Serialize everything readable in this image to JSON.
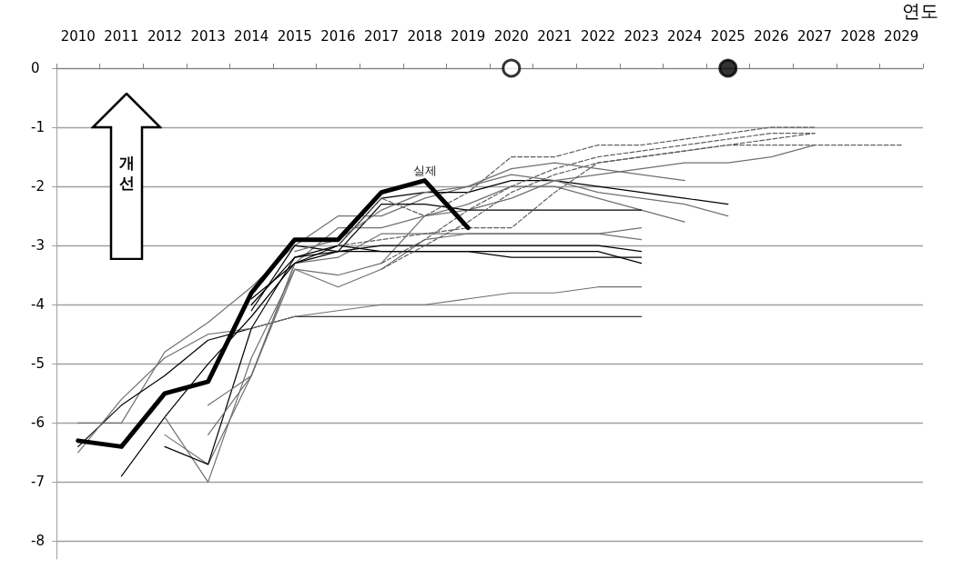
{
  "chart_data": {
    "type": "line",
    "xlabel": "연도",
    "annotations": [
      "개선"
    ],
    "grid": "y",
    "marker": "none",
    "line_style": "solid",
    "ylim": [
      -8.3,
      0
    ],
    "yticks": [
      -8,
      -7,
      -6,
      -5,
      -4,
      -3,
      -2,
      -1,
      0
    ],
    "categories": [
      "2010",
      "2011",
      "2012",
      "2013",
      "2014",
      "2015",
      "2016",
      "2017",
      "2018",
      "2019",
      "2020",
      "2021",
      "2022",
      "2023",
      "2024",
      "2025",
      "2026",
      "2027",
      "2028",
      "2029"
    ],
    "series": [
      {
        "color": "#707070",
        "values": [
          -6.0,
          -6.0,
          -4.8,
          -4.3,
          -3.7,
          -3.0,
          -2.5,
          -2.5,
          -2.2,
          -2.0,
          -1.7,
          -1.6,
          -1.7,
          -1.8,
          -1.9,
          null,
          null,
          null,
          null,
          null
        ]
      },
      {
        "color": "#000000",
        "values": [
          -6.4,
          -5.7,
          -5.2,
          -4.6,
          -4.4,
          -4.2,
          -4.2,
          -4.2,
          -4.2,
          -4.2,
          -4.2,
          -4.2,
          -4.2,
          -4.2,
          null,
          null,
          null,
          null,
          null,
          null
        ]
      },
      {
        "color": "#707070",
        "values": [
          -6.5,
          -5.6,
          -4.9,
          -4.5,
          -4.4,
          -4.2,
          -4.1,
          -4.0,
          -4.0,
          -3.9,
          -3.8,
          -3.8,
          -3.7,
          -3.7,
          null,
          null,
          null,
          null,
          null,
          null
        ]
      },
      {
        "color": "#000000",
        "values": [
          null,
          -6.9,
          -5.9,
          -5.0,
          -4.2,
          -3.3,
          -3.0,
          -2.2,
          -2.1,
          -2.1,
          -1.9,
          -1.9,
          -2.0,
          -2.1,
          -2.2,
          -2.3,
          null,
          null,
          null,
          null
        ]
      },
      {
        "color": "#707070",
        "values": [
          null,
          null,
          -6.2,
          -6.7,
          -5.2,
          -3.3,
          -2.7,
          -2.7,
          -2.5,
          -2.4,
          -2.2,
          -1.9,
          -2.1,
          -2.2,
          -2.3,
          -2.5,
          null,
          null,
          null,
          null
        ]
      },
      {
        "color": "#707070",
        "values": [
          null,
          null,
          -5.9,
          -7.0,
          -4.9,
          -3.4,
          -3.5,
          -3.3,
          -2.5,
          -2.3,
          -2.0,
          -2.0,
          -2.2,
          -2.4,
          -2.6,
          null,
          null,
          null,
          null,
          null
        ]
      },
      {
        "color": "#000000",
        "values": [
          null,
          null,
          -6.4,
          -6.7,
          -4.4,
          -3.2,
          -3.1,
          -2.3,
          -2.3,
          -2.4,
          -2.4,
          -2.4,
          -2.4,
          -2.4,
          null,
          null,
          null,
          null,
          null,
          null
        ]
      },
      {
        "color": "#707070",
        "values": [
          null,
          null,
          null,
          -5.7,
          -5.2,
          -3.4,
          -3.7,
          -3.4,
          -2.9,
          -2.8,
          -2.8,
          -2.8,
          -2.8,
          -2.7,
          null,
          null,
          null,
          null,
          null,
          null
        ]
      },
      {
        "color": "#707070",
        "values": [
          null,
          null,
          null,
          -6.2,
          -5.2,
          -3.3,
          -3.2,
          -2.8,
          -2.8,
          -2.8,
          -2.8,
          -2.8,
          -2.8,
          -2.9,
          null,
          null,
          null,
          null,
          null,
          null
        ]
      },
      {
        "color": "#000000",
        "values": [
          null,
          null,
          null,
          null,
          -4.1,
          -3.0,
          -3.1,
          -3.0,
          -3.0,
          -3.0,
          -3.0,
          -3.0,
          -3.0,
          -3.1,
          null,
          null,
          null,
          null,
          null,
          null
        ]
      },
      {
        "color": "#000000",
        "values": [
          null,
          null,
          null,
          null,
          -4.0,
          -3.2,
          -3.0,
          -3.1,
          -3.1,
          -3.1,
          -3.2,
          -3.2,
          -3.2,
          -3.2,
          null,
          null,
          null,
          null,
          null,
          null
        ]
      },
      {
        "color": "#000000",
        "values": [
          null,
          null,
          null,
          null,
          -3.9,
          -3.3,
          -3.1,
          -3.1,
          -3.1,
          -3.1,
          -3.1,
          -3.1,
          -3.1,
          -3.3,
          null,
          null,
          null,
          null,
          null,
          null
        ]
      },
      {
        "color": "#707070",
        "values": [
          null,
          null,
          null,
          null,
          null,
          -3.1,
          -2.9,
          -2.4,
          -2.1,
          -2.0,
          -1.8,
          -1.9,
          -1.8,
          -1.7,
          -1.6,
          -1.6,
          -1.5,
          -1.3,
          null,
          null
        ]
      },
      {
        "color": "#606060",
        "line_style": "dashed",
        "values": [
          null,
          null,
          null,
          null,
          null,
          null,
          -3.0,
          -2.2,
          -2.5,
          -2.1,
          -1.5,
          -1.5,
          -1.3,
          -1.3,
          -1.2,
          -1.1,
          -1.0,
          -1.0,
          null,
          null
        ]
      },
      {
        "color": "#606060",
        "line_style": "dashed",
        "values": [
          null,
          null,
          null,
          null,
          null,
          null,
          -3.0,
          -2.9,
          -2.8,
          -2.7,
          -2.7,
          -2.1,
          -1.6,
          -1.5,
          -1.4,
          -1.3,
          -1.3,
          -1.3,
          -1.3,
          -1.3
        ]
      },
      {
        "color": "#606060",
        "line_style": "dashed",
        "values": [
          null,
          null,
          null,
          null,
          null,
          null,
          null,
          -3.3,
          -2.9,
          -2.4,
          -2.0,
          -1.7,
          -1.5,
          -1.4,
          -1.3,
          -1.2,
          -1.1,
          -1.1,
          null,
          null
        ]
      },
      {
        "color": "#606060",
        "line_style": "dashed",
        "values": [
          null,
          null,
          null,
          null,
          null,
          null,
          null,
          -3.4,
          -3.0,
          -2.6,
          -2.1,
          -1.8,
          -1.6,
          -1.5,
          -1.4,
          -1.3,
          -1.2,
          -1.1,
          null,
          null
        ]
      },
      {
        "name": "실제",
        "color": "#000000",
        "values": [
          -6.3,
          -6.4,
          -5.5,
          -5.3,
          -3.8,
          -2.9,
          -2.9,
          -2.1,
          -1.9,
          -2.7,
          null,
          null,
          null,
          null,
          null,
          null,
          null,
          null,
          null,
          null
        ]
      },
      {
        "type": "scatter",
        "marker": "circle",
        "color": "#ffffff",
        "values": [
          null,
          null,
          null,
          null,
          null,
          null,
          null,
          null,
          null,
          null,
          0,
          null,
          null,
          null,
          null,
          null,
          null,
          null,
          null,
          null
        ]
      },
      {
        "type": "scatter",
        "marker": "circle",
        "color": "#000000",
        "values": [
          null,
          null,
          null,
          null,
          null,
          null,
          null,
          null,
          null,
          null,
          null,
          null,
          null,
          null,
          null,
          0,
          null,
          null,
          null,
          null
        ]
      }
    ]
  }
}
